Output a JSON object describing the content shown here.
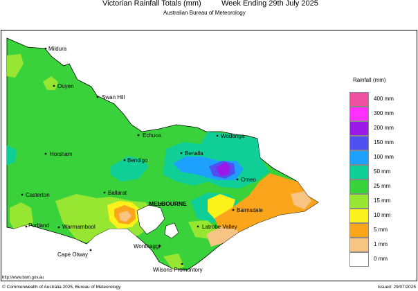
{
  "header": {
    "title": "Victorian Rainfall Totals (mm)",
    "period": "Week Ending 29th July 2025",
    "subtitle": "Australian Bureau of Meteorology"
  },
  "legend": {
    "title": "Rainfall (mm)",
    "items": [
      {
        "label": "400 mm",
        "color": "#f050a0"
      },
      {
        "label": "300 mm",
        "color": "#ff30ff"
      },
      {
        "label": "200 mm",
        "color": "#9b19e8"
      },
      {
        "label": "150 mm",
        "color": "#5050f0"
      },
      {
        "label": "100 mm",
        "color": "#1ea0ff"
      },
      {
        "label": "50 mm",
        "color": "#10cf96"
      },
      {
        "label": "25 mm",
        "color": "#3ad23a"
      },
      {
        "label": "15 mm",
        "color": "#96e632"
      },
      {
        "label": "10 mm",
        "color": "#fbf21c"
      },
      {
        "label": "5 mm",
        "color": "#fba51d"
      },
      {
        "label": "1 mm",
        "color": "#f7c483"
      },
      {
        "label": "0 mm",
        "color": "#ffffff"
      }
    ]
  },
  "towns": [
    {
      "name": "Mildura"
    },
    {
      "name": "Ouyen"
    },
    {
      "name": "Swan Hill"
    },
    {
      "name": "Echuca"
    },
    {
      "name": "Wodonga"
    },
    {
      "name": "Benalla"
    },
    {
      "name": "Horsham"
    },
    {
      "name": "Bendigo"
    },
    {
      "name": "Omeo"
    },
    {
      "name": "Casterton"
    },
    {
      "name": "Ballarat"
    },
    {
      "name": "MELBOURNE"
    },
    {
      "name": "Bairnsdale"
    },
    {
      "name": "Portland"
    },
    {
      "name": "Warrnambool"
    },
    {
      "name": "Latrobe Valley"
    },
    {
      "name": "Wonthaggi"
    },
    {
      "name": "Cape Otway"
    },
    {
      "name": "Wilsons Promontory"
    }
  ],
  "footer": {
    "url": "http://www.bom.gov.au",
    "copyright": "© Commonwealth of Australia 2025, Bureau of Meteorology",
    "issued": "Issued: 29/07/2025"
  }
}
